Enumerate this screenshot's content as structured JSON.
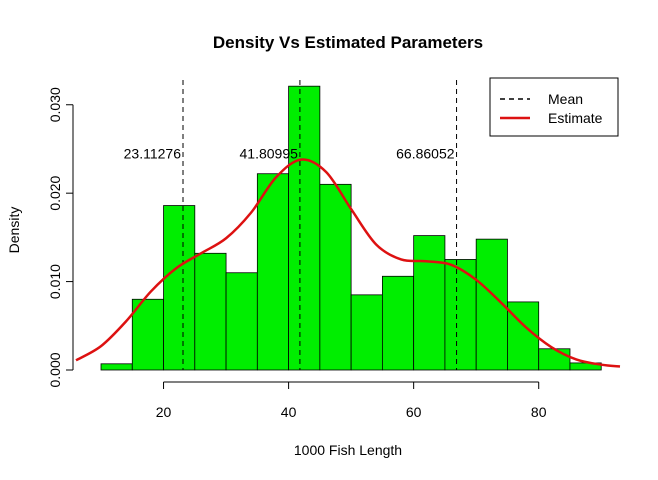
{
  "chart_data": {
    "type": "bar",
    "title": "Density Vs Estimated Parameters",
    "xlabel": "1000 Fish Length",
    "ylabel": "Density",
    "xlim": [
      6,
      93
    ],
    "ylim": [
      0,
      0.0328
    ],
    "x_ticks": [
      20,
      40,
      60,
      80
    ],
    "y_ticks": [
      0,
      0.01,
      0.02,
      0.03
    ],
    "x_tick_labels": [
      "20",
      "40",
      "60",
      "80"
    ],
    "y_tick_labels": [
      "0.000",
      "0.010",
      "0.020",
      "0.030"
    ],
    "grid": false,
    "bin_edges": [
      10,
      15,
      20,
      25,
      30,
      35,
      40,
      45,
      50,
      55,
      60,
      65,
      70,
      75,
      80,
      85,
      90
    ],
    "values": [
      0.0007,
      0.008,
      0.0186,
      0.0132,
      0.011,
      0.0222,
      0.0321,
      0.021,
      0.0085,
      0.0106,
      0.0152,
      0.0125,
      0.0148,
      0.0077,
      0.0024,
      0.0008
    ],
    "bar_color": "#00ee00",
    "series": [
      {
        "name": "Estimate",
        "type": "line",
        "color": "#dd1111",
        "x": [
          6,
          10,
          14,
          18,
          22,
          26,
          30,
          34,
          38,
          42,
          46,
          50,
          54,
          58,
          62,
          66,
          70,
          74,
          78,
          82,
          86,
          90,
          93
        ],
        "y": [
          0.0011,
          0.0027,
          0.0055,
          0.0089,
          0.0115,
          0.0132,
          0.0149,
          0.0178,
          0.0218,
          0.0238,
          0.0224,
          0.0182,
          0.0142,
          0.0125,
          0.0123,
          0.0119,
          0.0102,
          0.0076,
          0.0048,
          0.0026,
          0.0012,
          0.0006,
          0.0004
        ]
      }
    ],
    "mean_lines": [
      {
        "x": 23.11276,
        "label": "23.11276"
      },
      {
        "x": 41.80995,
        "label": "41.80995"
      },
      {
        "x": 66.86052,
        "label": "66.86052"
      }
    ],
    "annotation_y": 0.0245,
    "legend": {
      "placement": "top-right",
      "entries": [
        {
          "label": "Mean",
          "style": "dashed",
          "color": "#000000"
        },
        {
          "label": "Estimate",
          "style": "solid",
          "color": "#dd1111"
        }
      ]
    }
  }
}
